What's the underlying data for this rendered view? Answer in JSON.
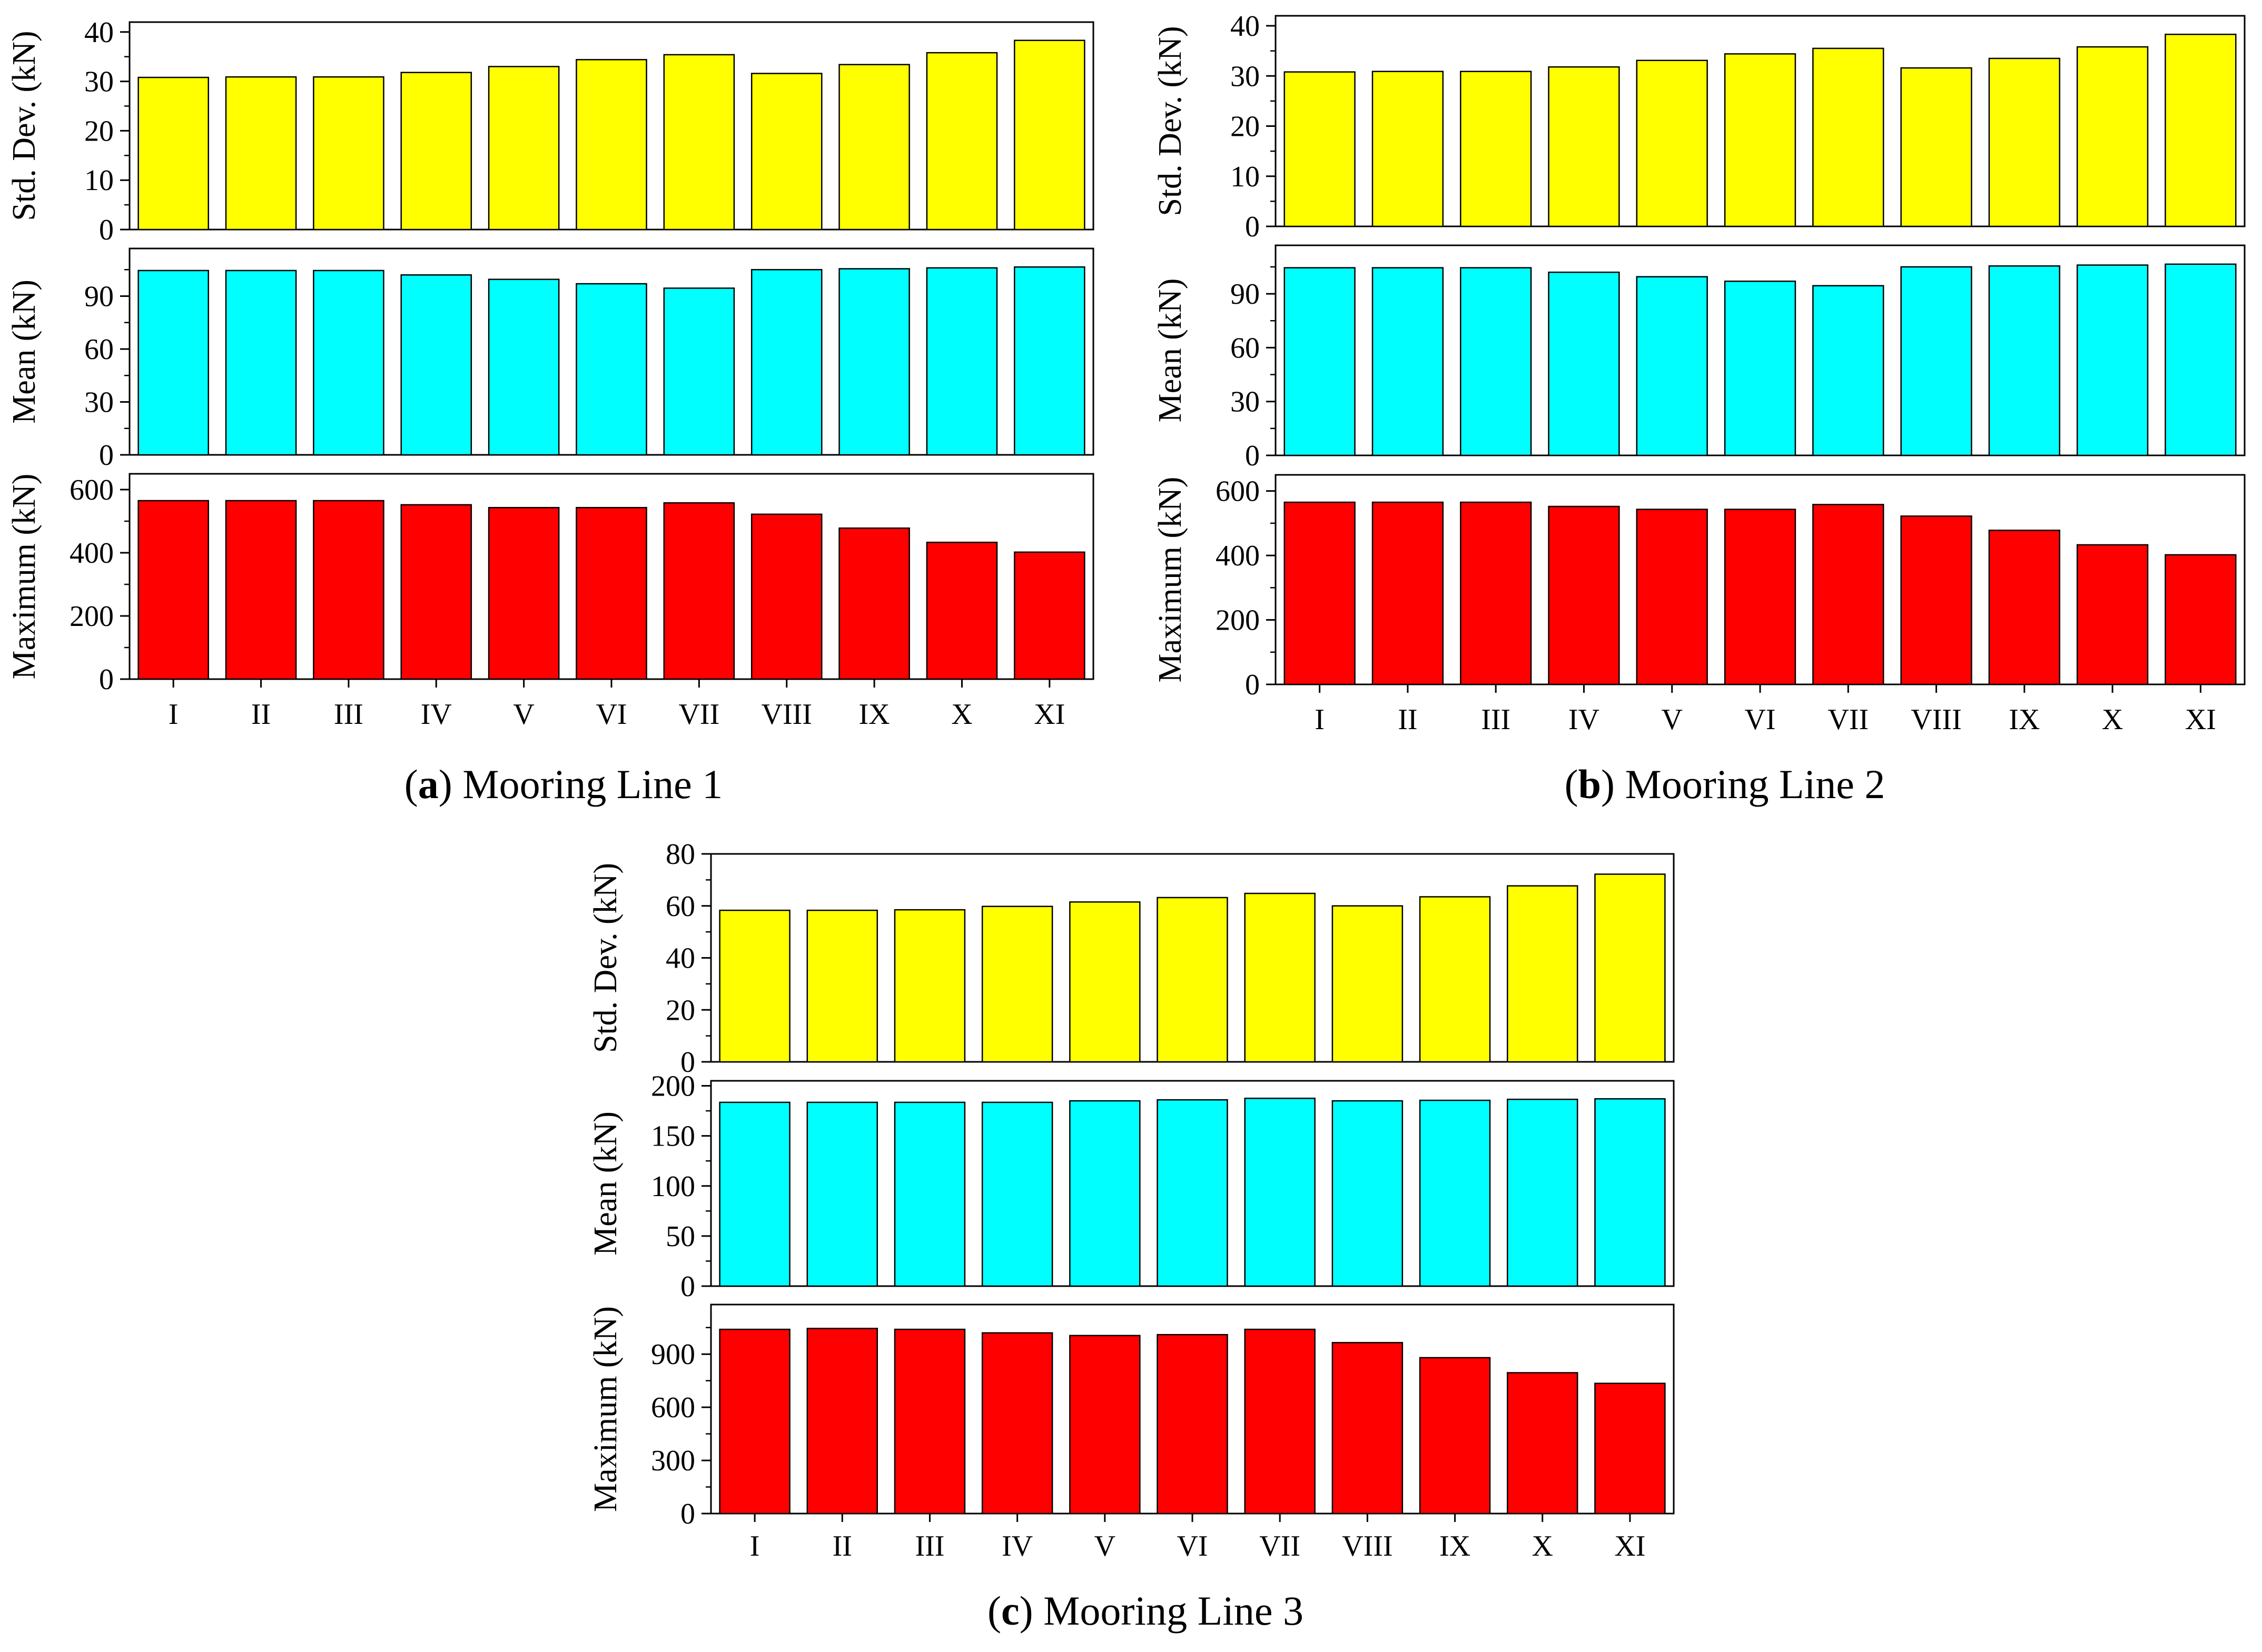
{
  "figure": {
    "captions": [
      {
        "tag": "a",
        "text": "Mooring Line 1"
      },
      {
        "tag": "b",
        "text": "Mooring Line 2"
      },
      {
        "tag": "c",
        "text": "Mooring Line 3"
      }
    ]
  },
  "colors": {
    "std_dev": "#FFFF00",
    "mean": "#00FFFF",
    "maximum": "#FF0000",
    "outline": "#000000"
  },
  "chart_data": [
    {
      "type": "bar",
      "title": "Mooring Line 1",
      "label": "a",
      "categories": [
        "I",
        "II",
        "III",
        "IV",
        "V",
        "VI",
        "VII",
        "VIII",
        "IX",
        "X",
        "XI"
      ],
      "panels": [
        {
          "name": "Std. Dev.",
          "ylabel": "Std. Dev. (kN)",
          "color": "#FFFF00",
          "values": [
            30.8,
            30.9,
            30.9,
            31.8,
            33.0,
            34.4,
            35.4,
            31.6,
            33.4,
            35.8,
            38.3
          ],
          "ylim": [
            0,
            42
          ],
          "yticks": [
            0,
            10,
            20,
            30,
            40
          ]
        },
        {
          "name": "Mean",
          "ylabel": "Mean (kN)",
          "color": "#00FFFF",
          "values": [
            104.5,
            104.5,
            104.5,
            102.0,
            99.5,
            97.0,
            94.5,
            105.0,
            105.5,
            106.0,
            106.5
          ],
          "ylim": [
            0,
            117
          ],
          "yticks": [
            0,
            30,
            60,
            90
          ]
        },
        {
          "name": "Maximum",
          "ylabel": "Maximum (kN)",
          "color": "#FF0000",
          "values": [
            565,
            565,
            565,
            552,
            543,
            543,
            558,
            522,
            478,
            433,
            402
          ],
          "ylim": [
            0,
            650
          ],
          "yticks": [
            0,
            200,
            400,
            600
          ]
        }
      ]
    },
    {
      "type": "bar",
      "title": "Mooring Line 2",
      "label": "b",
      "categories": [
        "I",
        "II",
        "III",
        "IV",
        "V",
        "VI",
        "VII",
        "VIII",
        "IX",
        "X",
        "XI"
      ],
      "panels": [
        {
          "name": "Std. Dev.",
          "ylabel": "Std. Dev. (kN)",
          "color": "#FFFF00",
          "values": [
            30.8,
            30.9,
            30.9,
            31.8,
            33.1,
            34.4,
            35.5,
            31.6,
            33.5,
            35.8,
            38.3
          ],
          "ylim": [
            0,
            42
          ],
          "yticks": [
            0,
            10,
            20,
            30,
            40
          ]
        },
        {
          "name": "Mean",
          "ylabel": "Mean (kN)",
          "color": "#00FFFF",
          "values": [
            104.5,
            104.5,
            104.5,
            102.0,
            99.5,
            97.0,
            94.5,
            105.0,
            105.5,
            106.0,
            106.5
          ],
          "ylim": [
            0,
            117
          ],
          "yticks": [
            0,
            30,
            60,
            90
          ]
        },
        {
          "name": "Maximum",
          "ylabel": "Maximum (kN)",
          "color": "#FF0000",
          "values": [
            565,
            565,
            565,
            552,
            543,
            543,
            558,
            522,
            478,
            433,
            402
          ],
          "ylim": [
            0,
            650
          ],
          "yticks": [
            0,
            200,
            400,
            600
          ]
        }
      ]
    },
    {
      "type": "bar",
      "title": "Mooring Line 3",
      "label": "c",
      "categories": [
        "I",
        "II",
        "III",
        "IV",
        "V",
        "VI",
        "VII",
        "VIII",
        "IX",
        "X",
        "XI"
      ],
      "panels": [
        {
          "name": "Std. Dev.",
          "ylabel": "Std. Dev. (kN)",
          "color": "#FFFF00",
          "values": [
            58.3,
            58.3,
            58.5,
            59.8,
            61.5,
            63.2,
            64.8,
            60.0,
            63.5,
            67.7,
            72.2
          ],
          "ylim": [
            0,
            80
          ],
          "yticks": [
            0,
            20,
            40,
            60,
            80
          ]
        },
        {
          "name": "Mean",
          "ylabel": "Mean (kN)",
          "color": "#00FFFF",
          "values": [
            183.5,
            183.5,
            183.5,
            183.5,
            185.0,
            186.0,
            187.5,
            185.0,
            185.5,
            186.5,
            187.0
          ],
          "ylim": [
            0,
            205
          ],
          "yticks": [
            0,
            50,
            100,
            150,
            200
          ]
        },
        {
          "name": "Maximum",
          "ylabel": "Maximum (kN)",
          "color": "#FF0000",
          "values": [
            1040,
            1045,
            1040,
            1020,
            1005,
            1010,
            1040,
            965,
            880,
            795,
            735
          ],
          "ylim": [
            0,
            1180
          ],
          "yticks": [
            0,
            300,
            600,
            900
          ]
        }
      ]
    }
  ]
}
